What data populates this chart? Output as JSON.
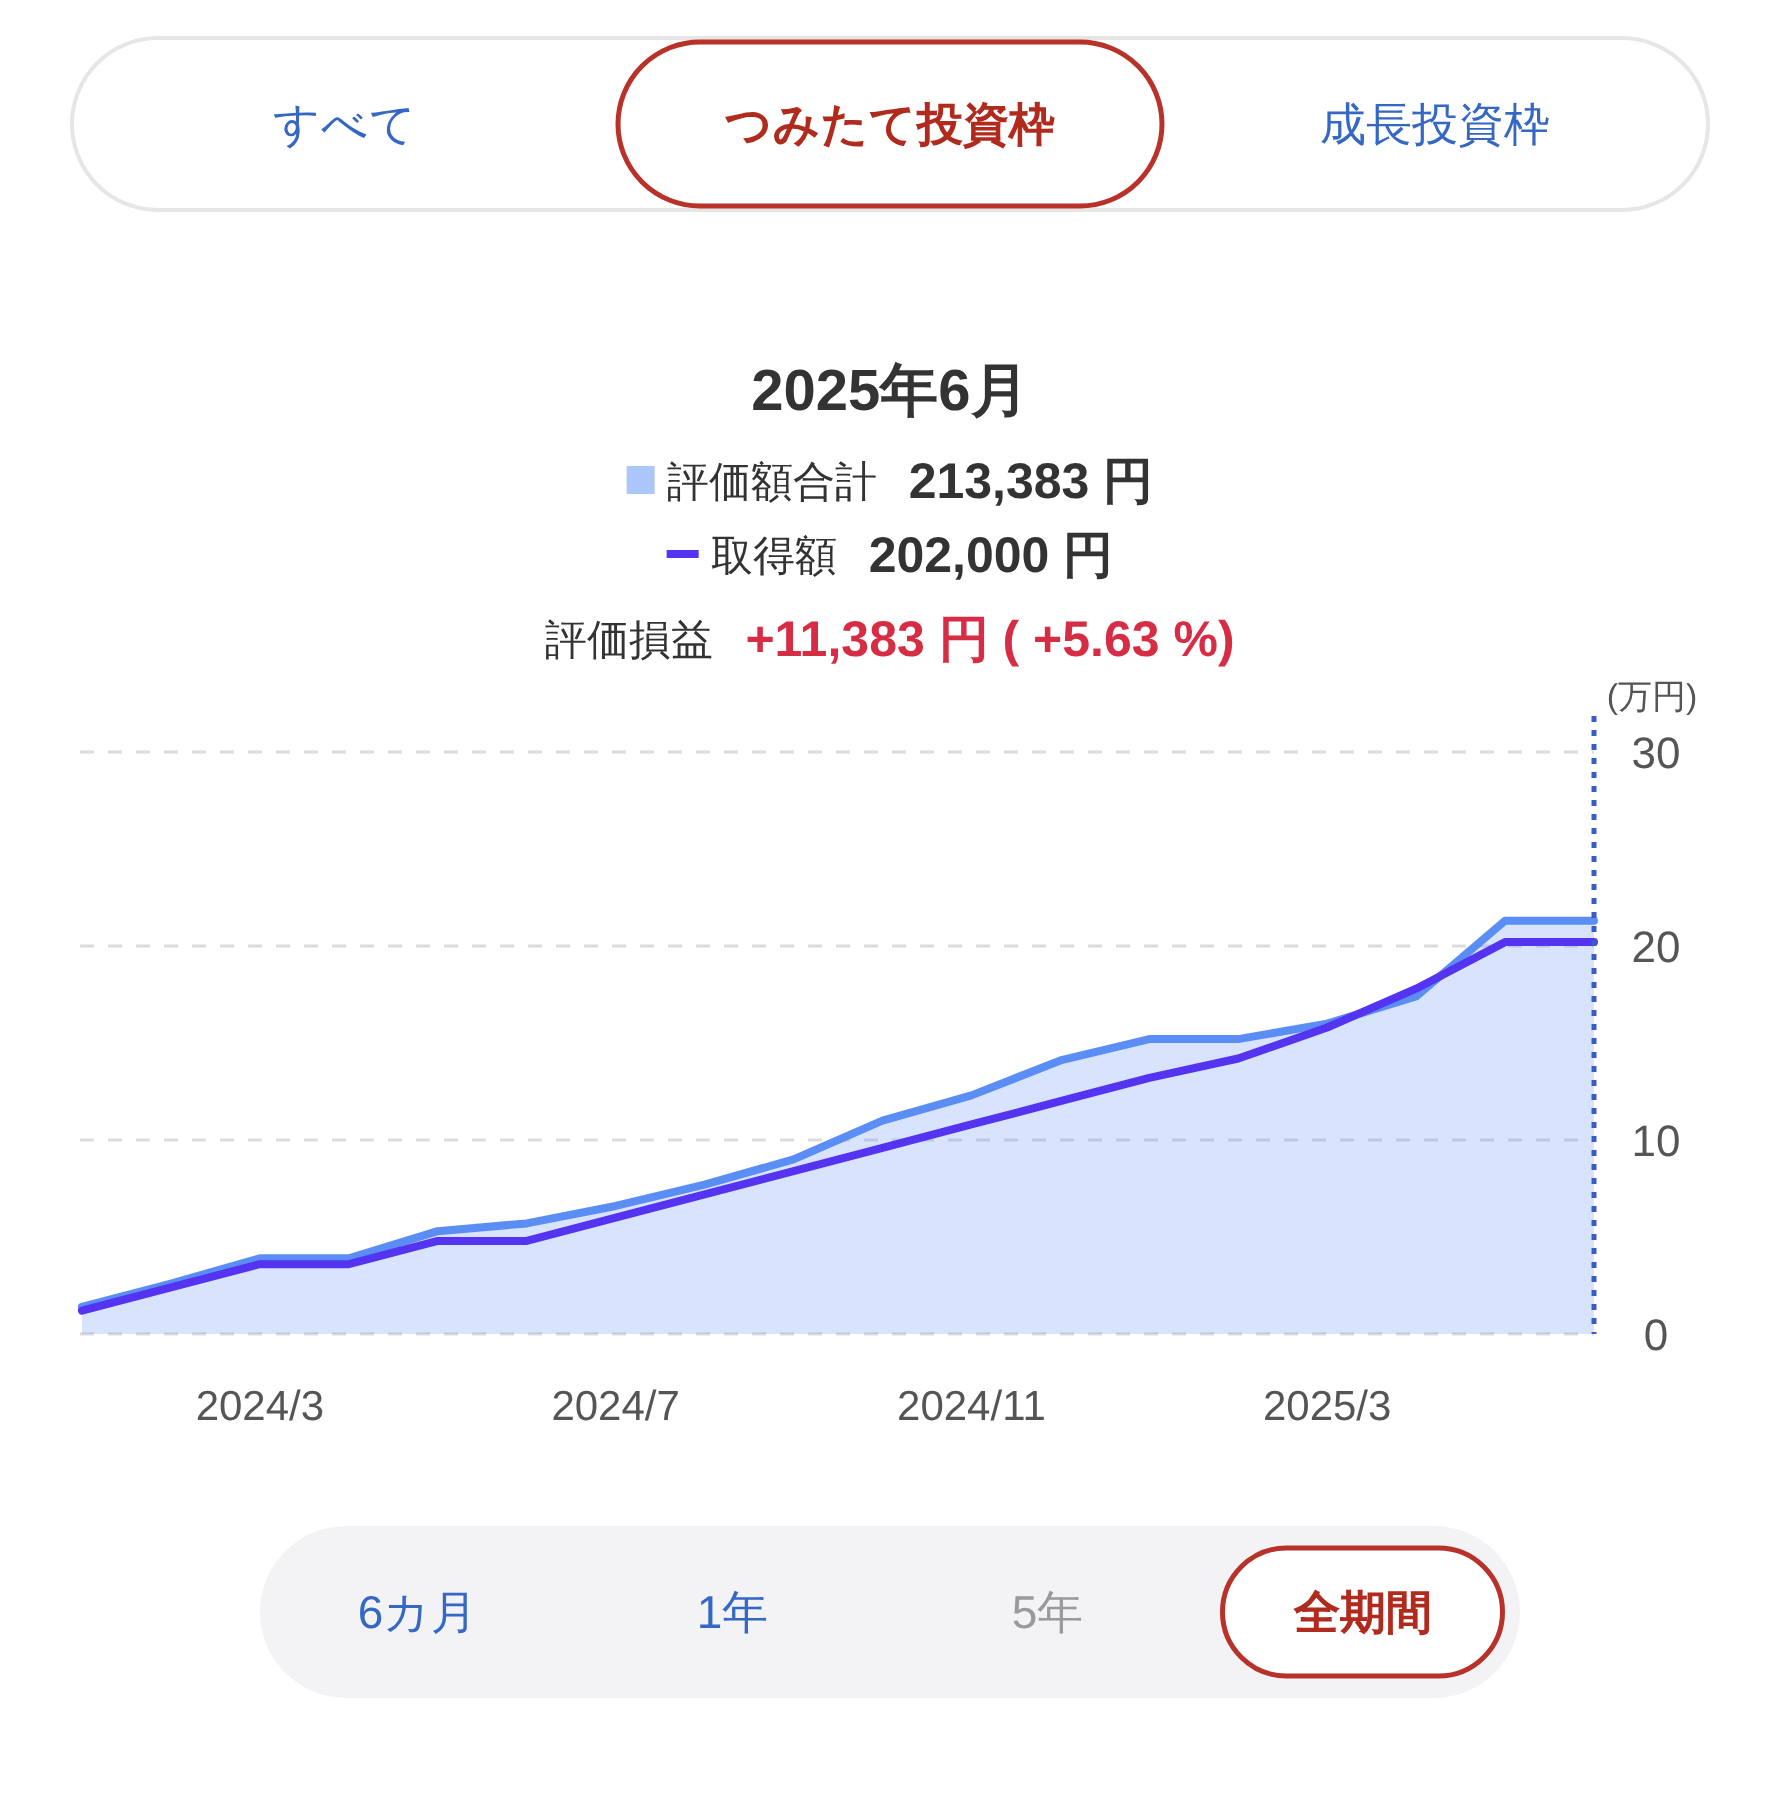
{
  "chart_data": {
    "type": "line",
    "title": "2025年6月",
    "ylabel": "(万円)",
    "x": [
      "2024-01",
      "2024-02",
      "2024-03",
      "2024-04",
      "2024-05",
      "2024-06",
      "2024-07",
      "2024-08",
      "2024-09",
      "2024-10",
      "2024-11",
      "2024-12",
      "2025-01",
      "2025-02",
      "2025-03",
      "2025-04",
      "2025-05",
      "2025-06"
    ],
    "series": [
      {
        "name": "評価額合計",
        "type": "area",
        "color": "#5b8ef5",
        "values": [
          1.4,
          2.6,
          3.9,
          3.9,
          5.3,
          5.7,
          6.6,
          7.7,
          9.0,
          11.0,
          12.3,
          14.1,
          15.2,
          15.2,
          16.0,
          17.4,
          21.3,
          21.3
        ]
      },
      {
        "name": "取得額",
        "type": "line",
        "color": "#5434f0",
        "values": [
          1.2,
          2.4,
          3.6,
          3.6,
          4.8,
          4.8,
          6.0,
          7.2,
          8.4,
          9.6,
          10.8,
          12.0,
          13.2,
          14.2,
          15.8,
          17.8,
          20.2,
          20.2
        ]
      }
    ],
    "xlim": [
      "2024-01",
      "2025-06"
    ],
    "xticks": [
      {
        "value": "2024-03",
        "label": "2024/3"
      },
      {
        "value": "2024-07",
        "label": "2024/7"
      },
      {
        "value": "2024-11",
        "label": "2024/11"
      },
      {
        "value": "2025-03",
        "label": "2025/3"
      }
    ],
    "ylim": [
      0,
      30
    ],
    "yticks": [
      0,
      10,
      20,
      30
    ],
    "grid": "y",
    "legend": "top",
    "ref_lines": [
      {
        "axis": "x",
        "value": "2025-06",
        "color": "#3a5cc7",
        "line_style": "dotted"
      }
    ],
    "annotations": [
      "すべて",
      "つみたて投資枠",
      "成長投資枠",
      "213,383 円",
      "202,000 円",
      "評価損益",
      "+11,383 円 ( +5.63 %)",
      "6カ月",
      "1年",
      "5年",
      "全期間"
    ]
  }
}
